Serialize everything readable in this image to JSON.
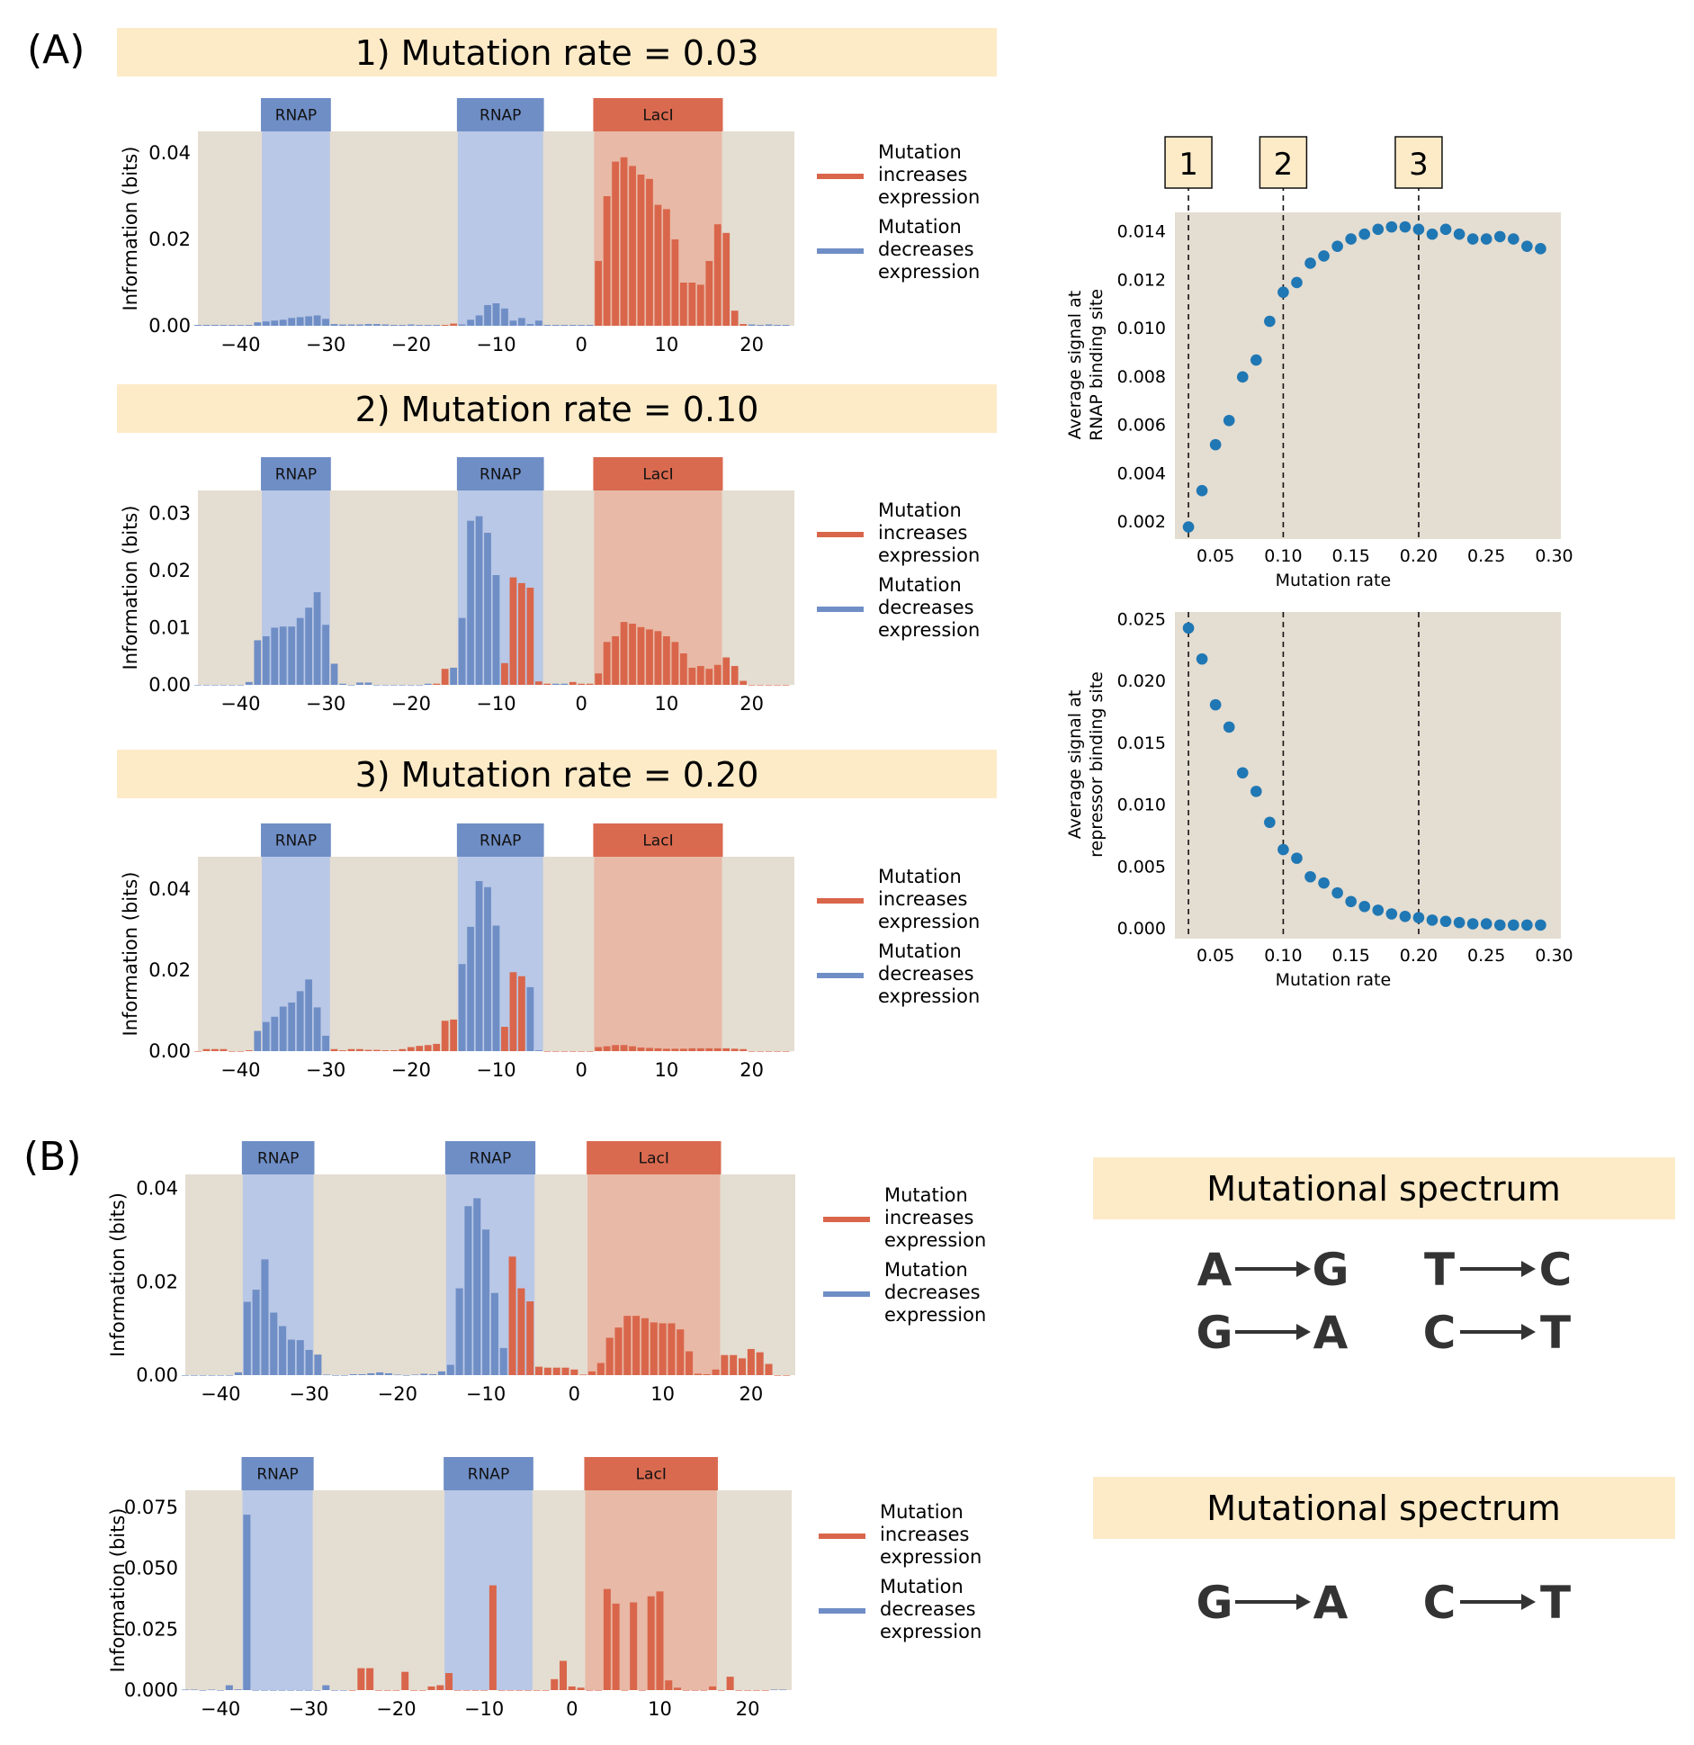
{
  "panel_labels": {
    "A": "(A)",
    "B": "(B)"
  },
  "colors": {
    "bg": "#e4ddd1",
    "rnap_shade": "#b9c8e6",
    "laci_shade": "#e8b9a6",
    "rnap_box": "#6f8ec6",
    "laci_box": "#d96a50",
    "bar_increase": "#d9664b",
    "bar_decrease": "#6f8ec6",
    "title_bg": "#fdebc8",
    "scatter": "#1f77b4"
  },
  "site_labels": {
    "rnap": "RNAP",
    "laci": "LacI"
  },
  "legend": {
    "increase": [
      "Mutation",
      "increases",
      "expression"
    ],
    "decrease": [
      "Mutation",
      "decreases",
      "expression"
    ]
  },
  "spectrum_title": "Mutational spectrum",
  "spectrum_b1": [
    [
      "A",
      "G"
    ],
    [
      "T",
      "C"
    ],
    [
      "G",
      "A"
    ],
    [
      "C",
      "T"
    ]
  ],
  "spectrum_b2": [
    [
      "G",
      "A"
    ],
    [
      "C",
      "T"
    ]
  ],
  "chart_data": [
    {
      "id": "A1",
      "type": "bar",
      "title": "1) Mutation rate = 0.03",
      "ylabel": "Information (bits)",
      "ylim": [
        0,
        0.045
      ],
      "yticks": [
        "0.00",
        "0.02",
        "0.04"
      ],
      "ytick_values": [
        0,
        0.02,
        0.04
      ],
      "xlim": [
        -45,
        25
      ],
      "xticks": [
        "−40",
        "−30",
        "−20",
        "−10",
        "0",
        "10",
        "20"
      ],
      "xtick_values": [
        -40,
        -30,
        -20,
        -10,
        0,
        10,
        20
      ],
      "x_start": -45,
      "values": [
        0.0002,
        0.0002,
        0.0002,
        0.0002,
        0.0002,
        0.0002,
        0.0002,
        0.0008,
        0.001,
        0.0012,
        0.0014,
        0.0018,
        0.002,
        0.0022,
        0.0024,
        0.0016,
        0.0004,
        0.0003,
        0.0003,
        0.0003,
        0.0004,
        0.0004,
        0.0003,
        0.0002,
        0.0002,
        0.0003,
        0.0002,
        0.0002,
        0.0002,
        0.0002,
        0.0005,
        0.0003,
        0.0014,
        0.0024,
        0.0048,
        0.0052,
        0.004,
        0.0012,
        0.0018,
        0.0004,
        0.0012,
        0.0002,
        0.0002,
        0.0002,
        0.0002,
        0.0002,
        0.0002,
        0.015,
        0.03,
        0.038,
        0.039,
        0.037,
        0.035,
        0.034,
        0.028,
        0.027,
        0.02,
        0.01,
        0.01,
        0.0095,
        0.015,
        0.0235,
        0.0215,
        0.0035,
        0.0004,
        0.0003,
        0.0002,
        0.0003,
        0.0002,
        0.0002
      ],
      "signs": "dddddddddddddddddddddddddddddiiddddddddddddddddiiiiiiiiiiiiiiiiiiddddd"
    },
    {
      "id": "A2",
      "type": "bar",
      "title": "2) Mutation rate = 0.10",
      "ylabel": "Information (bits)",
      "ylim": [
        0,
        0.034
      ],
      "yticks": [
        "0.00",
        "0.01",
        "0.02",
        "0.03"
      ],
      "ytick_values": [
        0,
        0.01,
        0.02,
        0.03
      ],
      "xlim": [
        -45,
        25
      ],
      "xticks": [
        "−40",
        "−30",
        "−20",
        "−10",
        "0",
        "10",
        "20"
      ],
      "xtick_values": [
        -40,
        -30,
        -20,
        -10,
        0,
        10,
        20
      ],
      "x_start": -45,
      "values": [
        0,
        0,
        0,
        0,
        0,
        0,
        0.0005,
        0.0078,
        0.0085,
        0.01,
        0.0102,
        0.0102,
        0.0117,
        0.0135,
        0.0162,
        0.0105,
        0.0037,
        0.0002,
        0,
        0.0004,
        0.0004,
        0,
        0,
        0,
        0,
        0,
        0,
        0.0002,
        0.0002,
        0.0028,
        0.003,
        0.0117,
        0.0287,
        0.0295,
        0.0266,
        0.0192,
        0.0038,
        0.0188,
        0.0178,
        0.017,
        0.0006,
        0.0002,
        0.0002,
        0.0002,
        0.0005,
        0.0002,
        0.0002,
        0.002,
        0.0075,
        0.0085,
        0.011,
        0.0107,
        0.0101,
        0.0097,
        0.0094,
        0.0085,
        0.0075,
        0.0055,
        0.003,
        0.0033,
        0.0028,
        0.0035,
        0.0048,
        0.0033,
        0.0007,
        0,
        0,
        0,
        0,
        0
      ],
      "signs": "ddddddddddddddddddddddddddddiiddddddiiiiiiddiiiiiiiiiiiiiiiiiiiiiiiiii"
    },
    {
      "id": "A3",
      "type": "bar",
      "title": "3) Mutation rate = 0.20",
      "ylabel": "Information (bits)",
      "ylim": [
        0,
        0.048
      ],
      "yticks": [
        "0.00",
        "0.02",
        "0.04"
      ],
      "ytick_values": [
        0,
        0.02,
        0.04
      ],
      "xlim": [
        -45,
        25
      ],
      "xticks": [
        "−40",
        "−30",
        "−20",
        "−10",
        "0",
        "10",
        "20"
      ],
      "xtick_values": [
        -40,
        -30,
        -20,
        -10,
        0,
        10,
        20
      ],
      "x_start": -45,
      "values": [
        0,
        0.0005,
        0.0005,
        0.0005,
        0,
        0,
        0.0002,
        0.005,
        0.0072,
        0.0085,
        0.011,
        0.012,
        0.0148,
        0.0177,
        0.0108,
        0.0038,
        0.0005,
        0.0002,
        0.0005,
        0.0005,
        0.0003,
        0.0003,
        0.0002,
        0.0002,
        0.0005,
        0.001,
        0.0013,
        0.0015,
        0.0018,
        0.0075,
        0.0078,
        0.0215,
        0.0307,
        0.042,
        0.0405,
        0.031,
        0.006,
        0.0195,
        0.0185,
        0.0158,
        0.0002,
        0,
        0,
        0,
        0,
        0,
        0,
        0.001,
        0.0012,
        0.0015,
        0.0015,
        0.0012,
        0.0009,
        0.0008,
        0.0007,
        0.0006,
        0.0006,
        0.0006,
        0.0007,
        0.0007,
        0.0007,
        0.0007,
        0.0007,
        0.0006,
        0.0005,
        0,
        0,
        0,
        0,
        0
      ],
      "signs": "iiiiiiidddddddddiiiiiiiiiiiiiiidddddiiiddiiiiiiiiiiiiiiiiiiiiiiiiiiiii"
    },
    {
      "id": "B1",
      "type": "bar",
      "title": "",
      "ylabel": "Information (bits)",
      "ylim": [
        0,
        0.043
      ],
      "yticks": [
        "0.00",
        "0.02",
        "0.04"
      ],
      "ytick_values": [
        0,
        0.02,
        0.04
      ],
      "xlim": [
        -44,
        25
      ],
      "xticks": [
        "−40",
        "−30",
        "−20",
        "−10",
        "0",
        "10",
        "20"
      ],
      "xtick_values": [
        -40,
        -30,
        -20,
        -10,
        0,
        10,
        20
      ],
      "x_start": -44,
      "values": [
        0,
        0,
        0,
        0,
        0,
        0,
        0.0006,
        0.0157,
        0.0183,
        0.0248,
        0.0134,
        0.0105,
        0.0076,
        0.0075,
        0.0054,
        0.0044,
        0.0001,
        0,
        0,
        0.0002,
        0.0002,
        0.0004,
        0.0006,
        0.0004,
        0.0001,
        0,
        0.0001,
        0.0003,
        0.0002,
        0.0008,
        0.0022,
        0.0186,
        0.0362,
        0.0379,
        0.0312,
        0.0176,
        0.0058,
        0.0254,
        0.0186,
        0.0158,
        0.0018,
        0.0016,
        0.0016,
        0.0016,
        0.0012,
        0.0001,
        0.0008,
        0.0026,
        0.008,
        0.0102,
        0.0127,
        0.0127,
        0.0122,
        0.0113,
        0.0111,
        0.0111,
        0.0098,
        0.0051,
        0.0003,
        0.0002,
        0.0012,
        0.0043,
        0.0043,
        0.0036,
        0.0056,
        0.0049,
        0.0024,
        0,
        0
      ],
      "signs": "dddddddddddddddddddddddddddddddddddddiiiiiiiiiiiiiiiiiiiiiiiiiiiiiiii"
    },
    {
      "id": "B2",
      "type": "bar",
      "title": "",
      "ylabel": "Information (bits)",
      "ylim": [
        0,
        0.082
      ],
      "yticks": [
        "0.000",
        "0.025",
        "0.050",
        "0.075"
      ],
      "ytick_values": [
        0,
        0.025,
        0.05,
        0.075
      ],
      "xlim": [
        -44,
        25
      ],
      "xticks": [
        "−40",
        "−30",
        "−20",
        "−10",
        "0",
        "10",
        "20"
      ],
      "xtick_values": [
        -40,
        -30,
        -20,
        -10,
        0,
        10,
        20
      ],
      "x_start": -44,
      "values": [
        0.0002,
        0.0002,
        0,
        0.0002,
        0,
        0.002,
        0.0003,
        0.072,
        0,
        0,
        0,
        0,
        0,
        0,
        0,
        0,
        0.002,
        0,
        0,
        0,
        0.009,
        0.009,
        0,
        0,
        0,
        0.0075,
        0,
        0,
        0.0015,
        0.002,
        0.007,
        0,
        0,
        0,
        0,
        0.043,
        0,
        0,
        0,
        0,
        0,
        0,
        0.0045,
        0.012,
        0.0015,
        0.001,
        0,
        0,
        0.0415,
        0.0355,
        0,
        0.036,
        0,
        0.0385,
        0.0405,
        0.004,
        0.001,
        0,
        0,
        0,
        0.0015,
        0,
        0.0055,
        0,
        0,
        0,
        0,
        0.0002,
        0.0002
      ],
      "signs": "dddddddddddddddddddiiiiiiiiiiiiiiiiiiiiiiiiiiiiiiiiiiiiiiiiiiiiiiii"
    },
    {
      "id": "S1",
      "type": "scatter",
      "xlabel": "Mutation rate",
      "ylabel": [
        "Average signal at",
        "RNAP binding site"
      ],
      "xlim": [
        0.02,
        0.305
      ],
      "ylim": [
        0.0013,
        0.0148
      ],
      "xticks": [
        "0.05",
        "0.10",
        "0.15",
        "0.20",
        "0.25",
        "0.30"
      ],
      "xtick_values": [
        0.05,
        0.1,
        0.15,
        0.2,
        0.25,
        0.3
      ],
      "yticks": [
        "0.002",
        "0.004",
        "0.006",
        "0.008",
        "0.010",
        "0.012",
        "0.014"
      ],
      "ytick_values": [
        0.002,
        0.004,
        0.006,
        0.008,
        0.01,
        0.012,
        0.014
      ],
      "x": [
        0.03,
        0.04,
        0.05,
        0.06,
        0.07,
        0.08,
        0.09,
        0.1,
        0.11,
        0.12,
        0.13,
        0.14,
        0.15,
        0.16,
        0.17,
        0.18,
        0.19,
        0.2,
        0.21,
        0.22,
        0.23,
        0.24,
        0.25,
        0.26,
        0.27,
        0.28,
        0.29
      ],
      "y": [
        0.0018,
        0.0033,
        0.0052,
        0.0062,
        0.008,
        0.0087,
        0.0103,
        0.0115,
        0.0119,
        0.0127,
        0.013,
        0.0134,
        0.0137,
        0.0139,
        0.0141,
        0.0142,
        0.0142,
        0.0141,
        0.0139,
        0.0141,
        0.0139,
        0.0137,
        0.0137,
        0.0138,
        0.0137,
        0.0134,
        0.0133
      ],
      "markers": [
        {
          "x": 0.03,
          "label": "1"
        },
        {
          "x": 0.1,
          "label": "2"
        },
        {
          "x": 0.2,
          "label": "3"
        }
      ]
    },
    {
      "id": "S2",
      "type": "scatter",
      "xlabel": "Mutation rate",
      "ylabel": [
        "Average signal at",
        "repressor binding site"
      ],
      "xlim": [
        0.02,
        0.305
      ],
      "ylim": [
        -0.0008,
        0.0256
      ],
      "xticks": [
        "0.05",
        "0.10",
        "0.15",
        "0.20",
        "0.25",
        "0.30"
      ],
      "xtick_values": [
        0.05,
        0.1,
        0.15,
        0.2,
        0.25,
        0.3
      ],
      "yticks": [
        "0.000",
        "0.005",
        "0.010",
        "0.015",
        "0.020",
        "0.025"
      ],
      "ytick_values": [
        0,
        0.005,
        0.01,
        0.015,
        0.02,
        0.025
      ],
      "x": [
        0.03,
        0.04,
        0.05,
        0.06,
        0.07,
        0.08,
        0.09,
        0.1,
        0.11,
        0.12,
        0.13,
        0.14,
        0.15,
        0.16,
        0.17,
        0.18,
        0.19,
        0.2,
        0.21,
        0.22,
        0.23,
        0.24,
        0.25,
        0.26,
        0.27,
        0.28,
        0.29
      ],
      "y": [
        0.0243,
        0.0218,
        0.0181,
        0.0163,
        0.0126,
        0.0111,
        0.0086,
        0.0064,
        0.0057,
        0.0042,
        0.0037,
        0.0029,
        0.0022,
        0.0018,
        0.0015,
        0.0012,
        0.001,
        0.0009,
        0.0007,
        0.0006,
        0.0005,
        0.0004,
        0.0004,
        0.0003,
        0.0003,
        0.0003,
        0.0003
      ],
      "markers": [
        {
          "x": 0.03,
          "label": ""
        },
        {
          "x": 0.1,
          "label": ""
        },
        {
          "x": 0.2,
          "label": ""
        }
      ]
    }
  ]
}
